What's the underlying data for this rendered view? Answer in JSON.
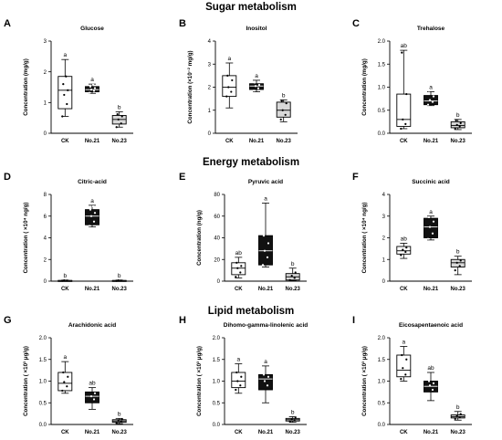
{
  "sections": [
    "Sugar metabolism",
    "Energy metabolism",
    "Lipid metabolism"
  ],
  "chart_data": [
    {
      "type": "boxplot",
      "panel": "A",
      "title": "Glucose",
      "ylabel": "Concentration (mg/g)",
      "categories": [
        "CK",
        "No.21",
        "No.23"
      ],
      "ylim": [
        0,
        3
      ],
      "yticks": [
        "0",
        "1",
        "2",
        "3"
      ],
      "letters": [
        "a",
        "a",
        "b"
      ],
      "boxes": [
        {
          "min": 0.55,
          "q1": 0.8,
          "median": 1.4,
          "q3": 1.85,
          "max": 2.4,
          "points": [
            0.55,
            0.95,
            1.25,
            1.4,
            1.6,
            1.85
          ]
        },
        {
          "min": 1.3,
          "q1": 1.35,
          "median": 1.42,
          "q3": 1.52,
          "max": 1.6,
          "points": [
            1.32,
            1.38,
            1.42,
            1.47,
            1.52,
            1.58
          ]
        },
        {
          "min": 0.2,
          "q1": 0.3,
          "median": 0.45,
          "q3": 0.58,
          "max": 0.7,
          "points": [
            0.2,
            0.32,
            0.45,
            0.55,
            0.62
          ]
        }
      ]
    },
    {
      "type": "boxplot",
      "panel": "B",
      "title": "Inositol",
      "ylabel": "Concentration (×10⁻² mg/g)",
      "categories": [
        "CK",
        "No.21",
        "No.23"
      ],
      "ylim": [
        0,
        4
      ],
      "yticks": [
        "0",
        "1",
        "2",
        "3",
        "4"
      ],
      "letters": [
        "a",
        "a",
        "b"
      ],
      "boxes": [
        {
          "min": 1.1,
          "q1": 1.6,
          "median": 2.0,
          "q3": 2.5,
          "max": 3.05,
          "points": [
            1.6,
            1.8,
            2.0,
            2.3,
            2.5
          ]
        },
        {
          "min": 1.8,
          "q1": 1.9,
          "median": 2.05,
          "q3": 2.15,
          "max": 2.3,
          "points": [
            1.85,
            1.95,
            2.05,
            2.1,
            2.2
          ]
        },
        {
          "min": 0.5,
          "q1": 0.7,
          "median": 1.0,
          "q3": 1.35,
          "max": 1.45,
          "points": [
            0.6,
            0.8,
            1.0,
            1.3,
            1.4
          ]
        }
      ]
    },
    {
      "type": "boxplot",
      "panel": "C",
      "title": "Trehalose",
      "ylabel": "Concentration (mg/g)",
      "categories": [
        "CK",
        "No.21",
        "No.23"
      ],
      "ylim": [
        0,
        2.0
      ],
      "yticks": [
        "0.0",
        "0.5",
        "1.0",
        "1.5",
        "2.0"
      ],
      "letters": [
        "ab",
        "a",
        "b"
      ],
      "boxes": [
        {
          "min": 0.1,
          "q1": 0.15,
          "median": 0.3,
          "q3": 0.85,
          "max": 1.8,
          "points": [
            0.1,
            0.2,
            0.3,
            0.85,
            1.75
          ]
        },
        {
          "min": 0.6,
          "q1": 0.62,
          "median": 0.7,
          "q3": 0.82,
          "max": 0.9,
          "points": [
            0.62,
            0.68,
            0.72,
            0.8,
            0.88
          ]
        },
        {
          "min": 0.08,
          "q1": 0.12,
          "median": 0.17,
          "q3": 0.25,
          "max": 0.3,
          "points": [
            0.1,
            0.15,
            0.18,
            0.22,
            0.28
          ]
        }
      ]
    },
    {
      "type": "boxplot",
      "panel": "D",
      "title": "Citric-acid",
      "ylabel": "Concentration ( ×10⁴ ng/g)",
      "categories": [
        "CK",
        "No.21",
        "No.23"
      ],
      "ylim": [
        0,
        8
      ],
      "yticks": [
        "0",
        "2",
        "4",
        "6",
        "8"
      ],
      "letters": [
        "b",
        "a",
        "b"
      ],
      "boxes": [
        {
          "min": 0.02,
          "q1": 0.03,
          "median": 0.05,
          "q3": 0.07,
          "max": 0.1,
          "points": [
            0.03,
            0.05,
            0.08
          ]
        },
        {
          "min": 5.0,
          "q1": 5.2,
          "median": 6.0,
          "q3": 6.6,
          "max": 7.0,
          "points": [
            5.1,
            5.5,
            6.0,
            6.3,
            6.6,
            6.9
          ]
        },
        {
          "min": 0.02,
          "q1": 0.03,
          "median": 0.05,
          "q3": 0.07,
          "max": 0.1,
          "points": [
            0.03,
            0.05,
            0.08
          ]
        }
      ]
    },
    {
      "type": "boxplot",
      "panel": "E",
      "title": "Pyruvic acid",
      "ylabel": "Concentration (ng/g)",
      "categories": [
        "CK",
        "No.21",
        "No.23"
      ],
      "ylim": [
        0,
        80
      ],
      "yticks": [
        "0",
        "20",
        "40",
        "60",
        "80"
      ],
      "letters": [
        "ab",
        "a",
        "b"
      ],
      "boxes": [
        {
          "min": 3,
          "q1": 6,
          "median": 12,
          "q3": 17,
          "max": 22,
          "points": [
            4,
            8,
            12,
            14,
            17
          ]
        },
        {
          "min": 13,
          "q1": 15,
          "median": 28,
          "q3": 42,
          "max": 72,
          "points": [
            15,
            22,
            28,
            35,
            42
          ]
        },
        {
          "min": 0.5,
          "q1": 1,
          "median": 4,
          "q3": 7,
          "max": 12,
          "points": [
            1,
            3,
            5,
            8
          ]
        }
      ]
    },
    {
      "type": "boxplot",
      "panel": "F",
      "title": "Succinic acid",
      "ylabel": "Concentration ( ×10⁴ ng/g)",
      "categories": [
        "CK",
        "No.21",
        "No.23"
      ],
      "ylim": [
        0,
        4
      ],
      "yticks": [
        "0",
        "1",
        "2",
        "3",
        "4"
      ],
      "letters": [
        "ab",
        "a",
        "b"
      ],
      "boxes": [
        {
          "min": 1.05,
          "q1": 1.25,
          "median": 1.4,
          "q3": 1.6,
          "max": 1.75,
          "points": [
            1.2,
            1.35,
            1.45,
            1.55
          ]
        },
        {
          "min": 1.9,
          "q1": 2.0,
          "median": 2.5,
          "q3": 2.9,
          "max": 3.0,
          "points": [
            1.95,
            2.2,
            2.5,
            2.75,
            2.95
          ]
        },
        {
          "min": 0.3,
          "q1": 0.65,
          "median": 0.85,
          "q3": 1.0,
          "max": 1.15,
          "points": [
            0.5,
            0.7,
            0.85,
            0.95
          ]
        }
      ]
    },
    {
      "type": "boxplot",
      "panel": "G",
      "title": "Arachidonic acid",
      "ylabel": "Concentration ( ×10³ μg/g)",
      "categories": [
        "CK",
        "No.21",
        "No.23"
      ],
      "ylim": [
        0,
        2.0
      ],
      "yticks": [
        "0.0",
        "0.5",
        "1.0",
        "1.5",
        "2.0"
      ],
      "letters": [
        "a",
        "ab",
        "b"
      ],
      "boxes": [
        {
          "min": 0.72,
          "q1": 0.78,
          "median": 0.95,
          "q3": 1.2,
          "max": 1.45,
          "points": [
            0.78,
            0.88,
            0.98,
            1.1,
            1.2
          ]
        },
        {
          "min": 0.35,
          "q1": 0.5,
          "median": 0.65,
          "q3": 0.75,
          "max": 0.85,
          "points": [
            0.45,
            0.58,
            0.65,
            0.72,
            0.8
          ]
        },
        {
          "min": 0.02,
          "q1": 0.05,
          "median": 0.08,
          "q3": 0.11,
          "max": 0.14,
          "points": [
            0.04,
            0.07,
            0.09,
            0.12
          ]
        }
      ]
    },
    {
      "type": "boxplot",
      "panel": "H",
      "title": "Dihomo-gamma-linolenic acid",
      "ylabel": "Concentration ( ×10³ μg/g)",
      "categories": [
        "CK",
        "No.21",
        "No.23"
      ],
      "ylim": [
        0,
        2.0
      ],
      "yticks": [
        "0.0",
        "0.5",
        "1.0",
        "1.5",
        "2.0"
      ],
      "letters": [
        "a",
        "a",
        "b"
      ],
      "boxes": [
        {
          "min": 0.72,
          "q1": 0.85,
          "median": 1.0,
          "q3": 1.2,
          "max": 1.4,
          "points": [
            0.8,
            0.9,
            1.0,
            1.1,
            1.2
          ]
        },
        {
          "min": 0.5,
          "q1": 0.8,
          "median": 1.05,
          "q3": 1.15,
          "max": 1.35,
          "points": [
            0.75,
            0.9,
            1.0,
            1.1,
            1.15
          ]
        },
        {
          "min": 0.05,
          "q1": 0.08,
          "median": 0.11,
          "q3": 0.14,
          "max": 0.18,
          "points": [
            0.07,
            0.1,
            0.12,
            0.15
          ]
        }
      ]
    },
    {
      "type": "boxplot",
      "panel": "I",
      "title": "Eicosapentaenoic acid",
      "ylabel": "Concentration ( ×10³ μg/g)",
      "categories": [
        "CK",
        "No.21",
        "No.23"
      ],
      "ylim": [
        0,
        2.0
      ],
      "yticks": [
        "0.0",
        "0.5",
        "1.0",
        "1.5",
        "2.0"
      ],
      "letters": [
        "a",
        "ab",
        "b"
      ],
      "boxes": [
        {
          "min": 1.0,
          "q1": 1.1,
          "median": 1.25,
          "q3": 1.6,
          "max": 1.8,
          "points": [
            1.05,
            1.15,
            1.3,
            1.5,
            1.6
          ]
        },
        {
          "min": 0.55,
          "q1": 0.75,
          "median": 0.88,
          "q3": 1.0,
          "max": 1.2,
          "points": [
            0.7,
            0.8,
            0.9,
            0.95,
            1.0
          ]
        },
        {
          "min": 0.1,
          "q1": 0.15,
          "median": 0.18,
          "q3": 0.22,
          "max": 0.3,
          "points": [
            0.13,
            0.17,
            0.2,
            0.24
          ]
        }
      ]
    }
  ],
  "box_fills": [
    "#ffffff",
    "#111111",
    "#d9d9d9"
  ],
  "colors": {
    "axis": "#000000",
    "point_on_light": "#000000",
    "point_on_dark": "#ffffff"
  }
}
